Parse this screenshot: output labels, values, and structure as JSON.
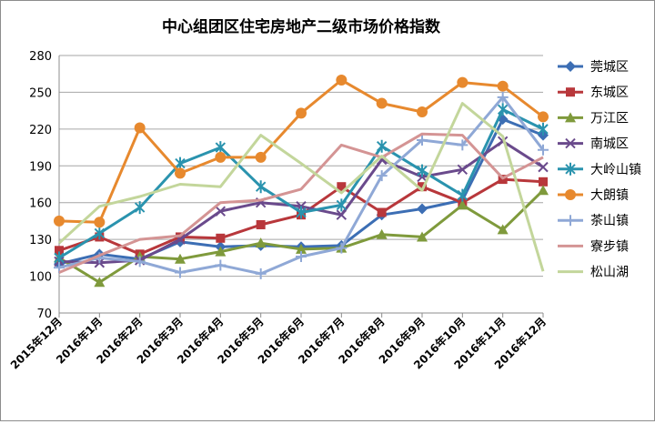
{
  "chart_data": {
    "type": "line",
    "title": "中心组团区住宅房地产二级市场价格指数",
    "xlabel": "",
    "ylabel": "",
    "categories": [
      "2015年12月",
      "2016年1月",
      "2016年2月",
      "2016年3月",
      "2016年4月",
      "2016年5月",
      "2016年6月",
      "2016年7月",
      "2016年8月",
      "2016年9月",
      "2016年10月",
      "2016年11月",
      "2016年12月"
    ],
    "ylim": [
      70,
      280
    ],
    "yticks": [
      70,
      100,
      130,
      160,
      190,
      220,
      250,
      280
    ],
    "grid": true,
    "legend_position": "right",
    "series": [
      {
        "name": "莞城区",
        "color": "#3c6eb4",
        "marker": "diamond",
        "values": [
          110,
          118,
          114,
          128,
          124,
          125,
          124,
          125,
          150,
          155,
          162,
          228,
          215
        ]
      },
      {
        "name": "东城区",
        "color": "#b8373b",
        "marker": "square",
        "values": [
          121,
          132,
          118,
          132,
          131,
          142,
          150,
          173,
          152,
          173,
          160,
          179,
          177
        ]
      },
      {
        "name": "万江区",
        "color": "#7f9a3c",
        "marker": "triangle",
        "values": [
          115,
          95,
          116,
          114,
          120,
          127,
          122,
          123,
          134,
          132,
          158,
          138,
          170
        ]
      },
      {
        "name": "南城区",
        "color": "#6a4a8c",
        "marker": "x",
        "values": [
          112,
          111,
          113,
          130,
          153,
          160,
          157,
          150,
          195,
          181,
          187,
          210,
          189
        ]
      },
      {
        "name": "大岭山镇",
        "color": "#2a93ae",
        "marker": "star",
        "values": [
          115,
          135,
          156,
          192,
          205,
          173,
          152,
          158,
          206,
          186,
          166,
          236,
          220
        ]
      },
      {
        "name": "大朗镇",
        "color": "#e7892e",
        "marker": "circle",
        "values": [
          145,
          144,
          221,
          184,
          197,
          197,
          233,
          260,
          241,
          234,
          258,
          255,
          230
        ]
      },
      {
        "name": "茶山镇",
        "color": "#8fa8d6",
        "marker": "plus",
        "values": [
          107,
          115,
          112,
          103,
          109,
          102,
          116,
          123,
          182,
          211,
          207,
          246,
          203
        ]
      },
      {
        "name": "寮步镇",
        "color": "#d49494",
        "marker": "none",
        "values": [
          103,
          117,
          130,
          133,
          160,
          162,
          171,
          207,
          197,
          216,
          215,
          180,
          197
        ]
      },
      {
        "name": "松山湖",
        "color": "#c3d69b",
        "marker": "none",
        "values": [
          127,
          157,
          165,
          175,
          173,
          215,
          192,
          168,
          198,
          170,
          241,
          214,
          104
        ]
      }
    ]
  }
}
